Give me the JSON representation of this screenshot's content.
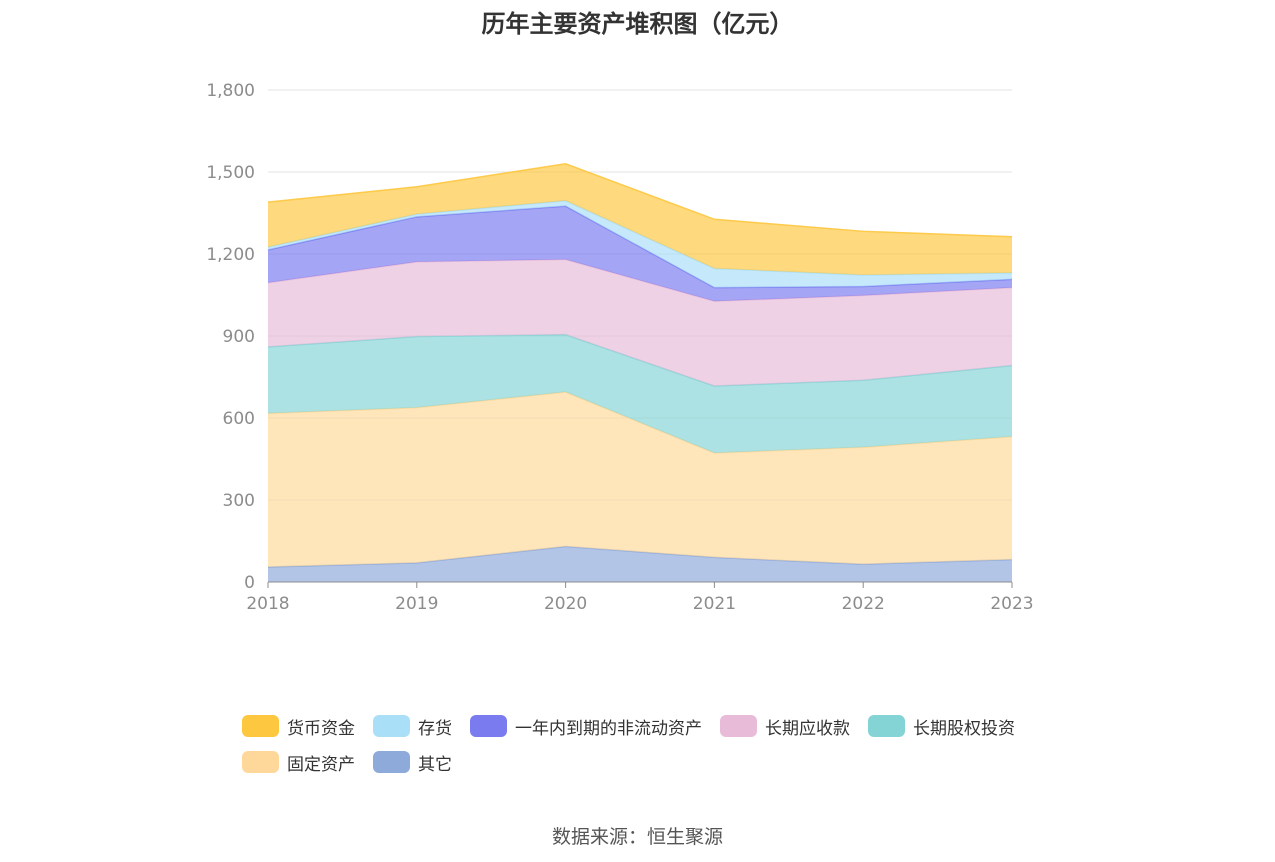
{
  "chart_data": {
    "type": "area",
    "stacked": true,
    "title": "历年主要资产堆积图（亿元）",
    "x": [
      "2018",
      "2019",
      "2020",
      "2021",
      "2022",
      "2023"
    ],
    "ylim": [
      0,
      1800
    ],
    "yticks": [
      0,
      300,
      600,
      900,
      1200,
      1500,
      1800
    ],
    "ytick_labels": [
      "0",
      "300",
      "600",
      "900",
      "1,200",
      "1,500",
      "1,800"
    ],
    "grid": true,
    "legend_position": "bottom",
    "series": [
      {
        "name": "其它",
        "color": "#8eaadb",
        "values": [
          55,
          70,
          130,
          90,
          65,
          82
        ]
      },
      {
        "name": "固定资产",
        "color": "#fed89a",
        "values": [
          562,
          568,
          565,
          382,
          428,
          450
        ]
      },
      {
        "name": "长期股权投资",
        "color": "#84d4d5",
        "values": [
          243,
          260,
          210,
          245,
          245,
          260
        ]
      },
      {
        "name": "长期应收款",
        "color": "#e8bbd9",
        "values": [
          235,
          273,
          275,
          310,
          310,
          285
        ]
      },
      {
        "name": "一年内到期的非流动资产",
        "color": "#7b7bf0",
        "values": [
          120,
          165,
          195,
          50,
          33,
          30
        ]
      },
      {
        "name": "存货",
        "color": "#aadff8",
        "values": [
          10,
          10,
          20,
          70,
          42,
          24
        ]
      },
      {
        "name": "货币资金",
        "color": "#fdc73f",
        "values": [
          165,
          100,
          135,
          180,
          160,
          132
        ]
      }
    ],
    "legend_order": [
      "货币资金",
      "存货",
      "一年内到期的非流动资产",
      "长期应收款",
      "长期股权投资",
      "固定资产",
      "其它"
    ]
  },
  "source_text": "数据来源：恒生聚源"
}
